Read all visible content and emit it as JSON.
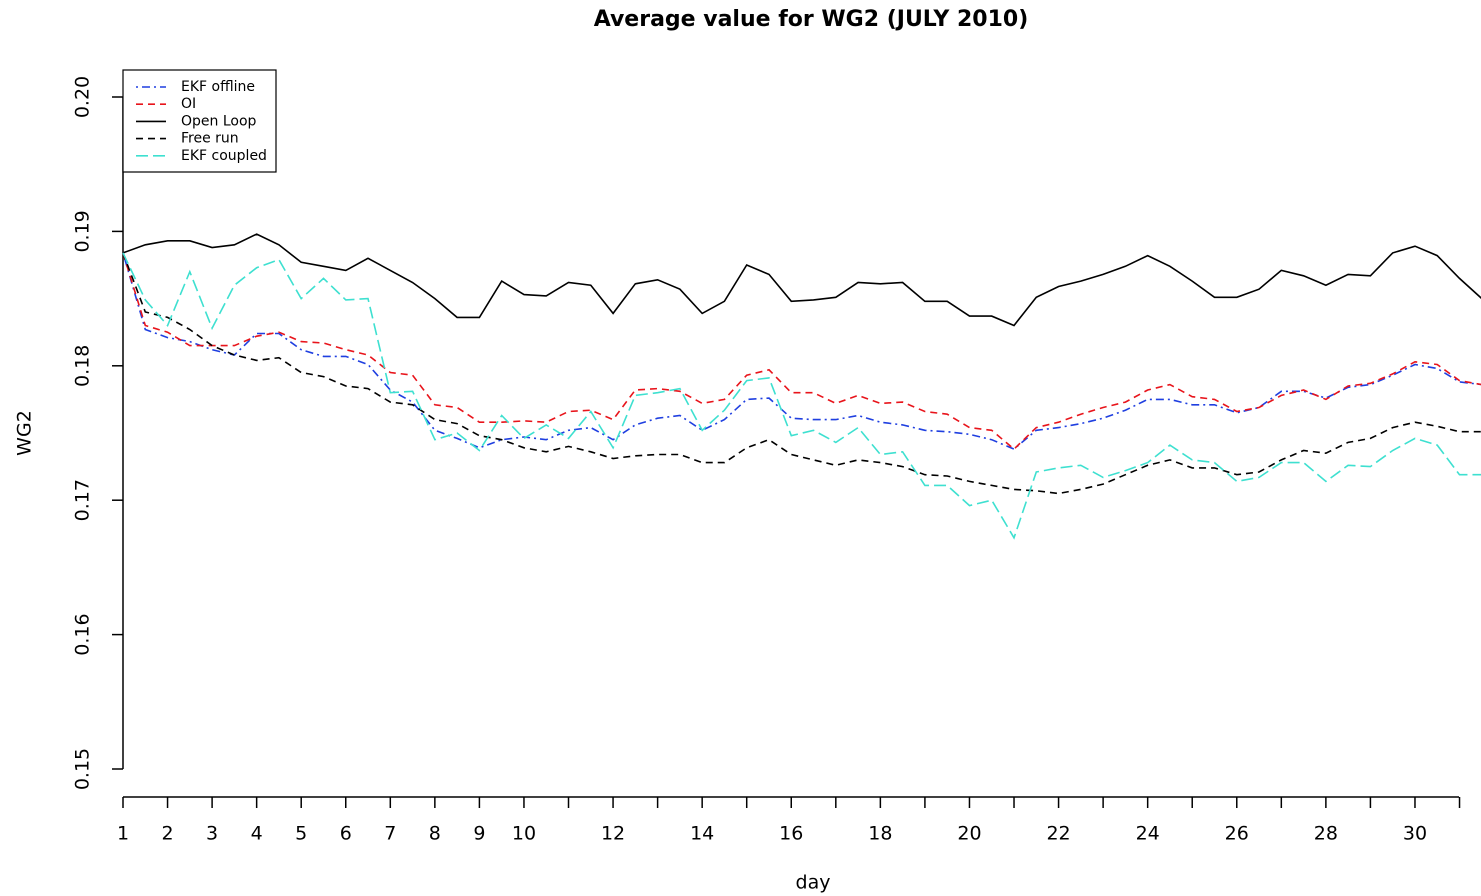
{
  "chart_data": {
    "type": "line",
    "title": "Average value for WG2 (JULY 2010)",
    "x_label": "day",
    "y_label": "WG2",
    "x": [
      1,
      1.5,
      2,
      2.5,
      3,
      3.5,
      4,
      4.5,
      5,
      5.5,
      6,
      6.5,
      7,
      7.5,
      8,
      8.5,
      9,
      9.5,
      10,
      10.5,
      11,
      11.5,
      12,
      12.5,
      13,
      13.5,
      14,
      14.5,
      15,
      15.5,
      16,
      16.5,
      17,
      17.5,
      18,
      18.5,
      19,
      19.5,
      20,
      20.5,
      21,
      21.5,
      22,
      22.5,
      23,
      23.5,
      24,
      24.5,
      25,
      25.5,
      26,
      26.5,
      27,
      27.5,
      28,
      28.5,
      29,
      29.5,
      30,
      30.5,
      31,
      31.5
    ],
    "series": [
      {
        "name": "EKF offline",
        "color": "#1f3fe0",
        "dash": "dotdash",
        "values": [
          0.1884,
          0.1827,
          0.1821,
          0.1818,
          0.1812,
          0.1808,
          0.1824,
          0.1824,
          0.1812,
          0.1807,
          0.1807,
          0.1801,
          0.1782,
          0.1773,
          0.1752,
          0.1746,
          0.1739,
          0.1745,
          0.1747,
          0.1745,
          0.1752,
          0.1754,
          0.1745,
          0.1756,
          0.1761,
          0.1763,
          0.1752,
          0.176,
          0.1775,
          0.1776,
          0.1761,
          0.176,
          0.176,
          0.1763,
          0.1758,
          0.1756,
          0.1752,
          0.1751,
          0.1749,
          0.1745,
          0.1738,
          0.1752,
          0.1754,
          0.1757,
          0.1761,
          0.1767,
          0.1775,
          0.1775,
          0.1771,
          0.1771,
          0.1765,
          0.1769,
          0.1781,
          0.1781,
          0.1776,
          0.1784,
          0.1786,
          0.1793,
          0.1801,
          0.1798,
          0.1788,
          0.1786
        ]
      },
      {
        "name": "OI",
        "color": "#e8141b",
        "dash": "dashed",
        "values": [
          0.1884,
          0.183,
          0.1825,
          0.1815,
          0.1815,
          0.1815,
          0.1822,
          0.1825,
          0.1818,
          0.1817,
          0.1812,
          0.1808,
          0.1795,
          0.1793,
          0.1771,
          0.1769,
          0.1758,
          0.1758,
          0.1759,
          0.1758,
          0.1766,
          0.1767,
          0.176,
          0.1782,
          0.1783,
          0.1781,
          0.1772,
          0.1775,
          0.1793,
          0.1797,
          0.178,
          0.178,
          0.1772,
          0.1778,
          0.1772,
          0.1773,
          0.1766,
          0.1764,
          0.1754,
          0.1752,
          0.1738,
          0.1754,
          0.1758,
          0.1764,
          0.1769,
          0.1773,
          0.1782,
          0.1786,
          0.1777,
          0.1775,
          0.1766,
          0.1769,
          0.1778,
          0.1782,
          0.1775,
          0.1785,
          0.1787,
          0.1794,
          0.1803,
          0.1801,
          0.1789,
          0.1786
        ]
      },
      {
        "name": "Open Loop",
        "color": "#000000",
        "dash": "solid",
        "values": [
          0.1884,
          0.189,
          0.1893,
          0.1893,
          0.1888,
          0.189,
          0.1898,
          0.189,
          0.1877,
          0.1874,
          0.1871,
          0.188,
          0.1871,
          0.1862,
          0.185,
          0.1836,
          0.1836,
          0.1863,
          0.1853,
          0.1852,
          0.1862,
          0.186,
          0.1839,
          0.1861,
          0.1864,
          0.1857,
          0.1839,
          0.1848,
          0.1875,
          0.1868,
          0.1848,
          0.1849,
          0.1851,
          0.1862,
          0.1861,
          0.1862,
          0.1848,
          0.1848,
          0.1837,
          0.1837,
          0.183,
          0.1851,
          0.1859,
          0.1863,
          0.1868,
          0.1874,
          0.1882,
          0.1874,
          0.1863,
          0.1851,
          0.1851,
          0.1857,
          0.1871,
          0.1867,
          0.186,
          0.1868,
          0.1867,
          0.1884,
          0.1889,
          0.1882,
          0.1865,
          0.185
        ]
      },
      {
        "name": "Free run",
        "color": "#000000",
        "dash": "dashed",
        "values": [
          0.1884,
          0.184,
          0.1836,
          0.1827,
          0.1815,
          0.1808,
          0.1804,
          0.1806,
          0.1795,
          0.1792,
          0.1785,
          0.1783,
          0.1773,
          0.1771,
          0.176,
          0.1757,
          0.1748,
          0.1745,
          0.1739,
          0.1736,
          0.174,
          0.1736,
          0.1731,
          0.1733,
          0.1734,
          0.1734,
          0.1728,
          0.1728,
          0.1739,
          0.1745,
          0.1734,
          0.173,
          0.1726,
          0.173,
          0.1728,
          0.1725,
          0.1719,
          0.1718,
          0.1714,
          0.1711,
          0.1708,
          0.1707,
          0.1705,
          0.1708,
          0.1712,
          0.1719,
          0.1726,
          0.173,
          0.1724,
          0.1724,
          0.1719,
          0.1721,
          0.173,
          0.1737,
          0.1735,
          0.1743,
          0.1746,
          0.1754,
          0.1758,
          0.1755,
          0.1751,
          0.1751
        ]
      },
      {
        "name": "EKF coupled",
        "color": "#3ee0d0",
        "dash": "longdash",
        "values": [
          0.1884,
          0.1849,
          0.183,
          0.187,
          0.1828,
          0.186,
          0.1873,
          0.1879,
          0.185,
          0.1865,
          0.1849,
          0.185,
          0.178,
          0.1781,
          0.1745,
          0.175,
          0.1737,
          0.1763,
          0.1746,
          0.1756,
          0.1746,
          0.1766,
          0.1739,
          0.1778,
          0.178,
          0.1783,
          0.1752,
          0.1767,
          0.1789,
          0.1791,
          0.1748,
          0.1752,
          0.1743,
          0.1754,
          0.1734,
          0.1736,
          0.1711,
          0.1711,
          0.1696,
          0.17,
          0.1672,
          0.1721,
          0.1724,
          0.1726,
          0.1717,
          0.1722,
          0.1728,
          0.1741,
          0.173,
          0.1728,
          0.1714,
          0.1717,
          0.1728,
          0.1728,
          0.1714,
          0.1726,
          0.1725,
          0.1737,
          0.1746,
          0.1741,
          0.1719,
          0.1719
        ]
      }
    ],
    "xlim": [
      1,
      31.5
    ],
    "xticks": [
      1,
      2,
      3,
      4,
      5,
      6,
      7,
      8,
      9,
      10,
      12,
      14,
      16,
      18,
      20,
      22,
      24,
      26,
      28,
      30
    ],
    "xminorticks": [
      11,
      13,
      15,
      17,
      19,
      21,
      23,
      25,
      27,
      29,
      31
    ],
    "ylim": [
      0.15,
      0.2
    ],
    "yticks": [
      0.15,
      0.16,
      0.17,
      0.18,
      0.19,
      {
        "value": 0.2,
        "label": "0.20"
      }
    ],
    "legend": "top-left",
    "grid": false
  }
}
